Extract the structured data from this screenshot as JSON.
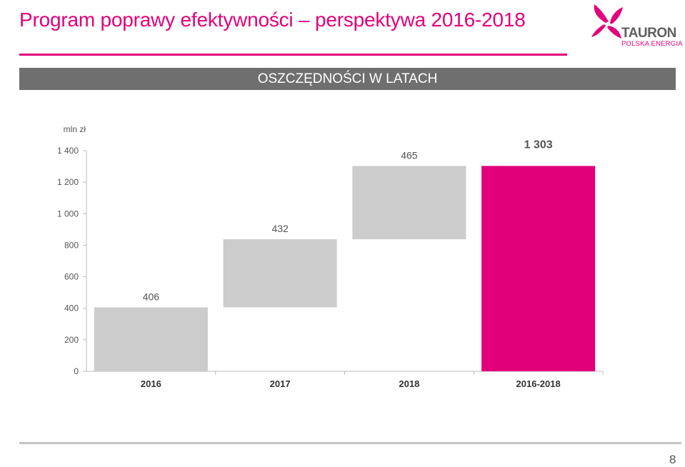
{
  "header": {
    "title": "Program poprawy efektywności – perspektywa 2016-2018",
    "logo_text": "TAURON",
    "logo_subtext": "POLSKA ENERGIA"
  },
  "banner": {
    "text": "OSZCZĘDNOŚCI W LATACH"
  },
  "colors": {
    "accent": "#e2007a",
    "increment_bar": "#cccccc",
    "banner_bg": "#6f6f6f"
  },
  "chart_data": {
    "type": "waterfall",
    "unit_label": "mln zł",
    "categories": [
      "2016",
      "2017",
      "2018",
      "2016-2018"
    ],
    "values": [
      406,
      432,
      465,
      1303
    ],
    "value_labels": [
      "406",
      "432",
      "465",
      "1 303"
    ],
    "bar_kinds": [
      "increment",
      "increment",
      "increment",
      "total"
    ],
    "ylim": [
      0,
      1400
    ],
    "yticks": [
      0,
      200,
      400,
      600,
      800,
      1000,
      1200,
      1400
    ],
    "ytick_labels": [
      "0",
      "200",
      "400",
      "600",
      "800",
      "1 000",
      "1 200",
      "1 400"
    ],
    "grid": false,
    "legend": "none"
  },
  "footer": {
    "page_number": "8"
  }
}
